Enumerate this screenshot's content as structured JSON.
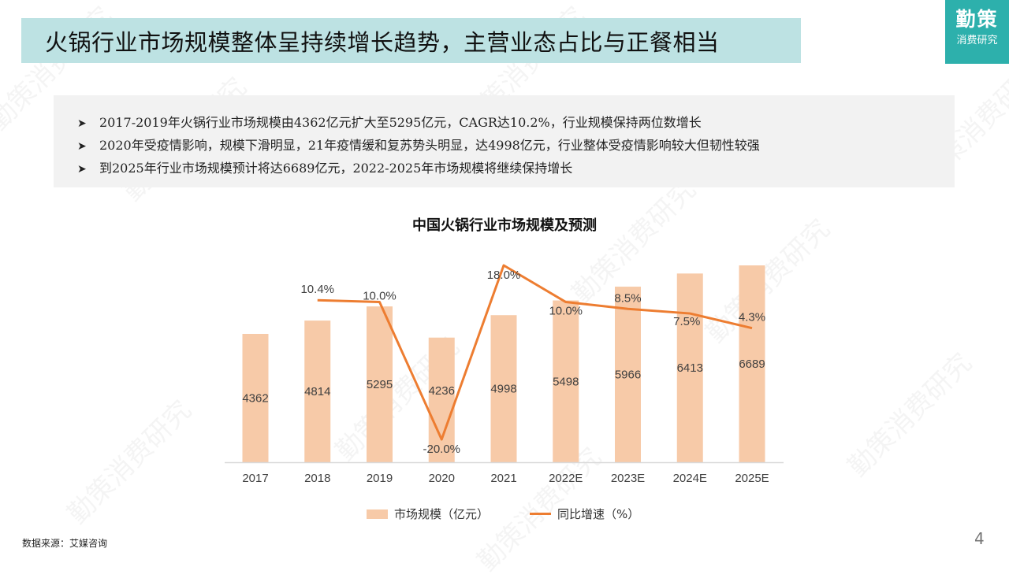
{
  "header": {
    "title": "火锅行业市场规模整体呈持续增长趋势，主营业态占比与正餐相当"
  },
  "logo": {
    "main": "勤策",
    "sub": "消费研究"
  },
  "bullets": [
    {
      "icon": "arrow-bullet-icon",
      "text": "2017-2019年火锅行业市场规模由4362亿元扩大至5295亿元，CAGR达10.2%，行业规模保持两位数增长"
    },
    {
      "icon": "arrow-bullet-icon",
      "text": "2020年受疫情影响，规模下滑明显，21年疫情缓和复苏势头明显，达4998亿元，行业整体受疫情影响较大但韧性较强"
    },
    {
      "icon": "arrow-bullet-icon",
      "text": "到2025年行业市场规模预计将达6689亿元，2022-2025年市场规模将继续保持增长"
    }
  ],
  "chart_data": {
    "type": "bar",
    "title": "中国火锅行业市场规模及预测",
    "categories": [
      "2017",
      "2018",
      "2019",
      "2020",
      "2021",
      "2022E",
      "2023E",
      "2024E",
      "2025E"
    ],
    "series": [
      {
        "name": "市场规模（亿元）",
        "type": "bar",
        "color": "#f7caa8",
        "values": [
          4362,
          4814,
          5295,
          4236,
          4998,
          5498,
          5966,
          6413,
          6689
        ],
        "labels": [
          "4362",
          "4814",
          "5295",
          "4236",
          "4998",
          "5498",
          "5966",
          "6413",
          "6689"
        ]
      },
      {
        "name": "同比增速（%）",
        "type": "line",
        "color": "#ed7d31",
        "values": [
          null,
          10.4,
          10.0,
          -20.0,
          18.0,
          10.0,
          8.5,
          7.5,
          4.3
        ],
        "labels": [
          "",
          "10.4%",
          "10.0%",
          "-20.0%",
          "18.0%",
          "10.0%",
          "8.5%",
          "7.5%",
          "4.3%"
        ]
      }
    ],
    "xlabel": "",
    "ylabel": "",
    "grid": false,
    "legend_position": "bottom"
  },
  "footer": {
    "source": "数据来源：艾媒咨询",
    "page_number": "4"
  },
  "watermark": "勤策消费研究"
}
